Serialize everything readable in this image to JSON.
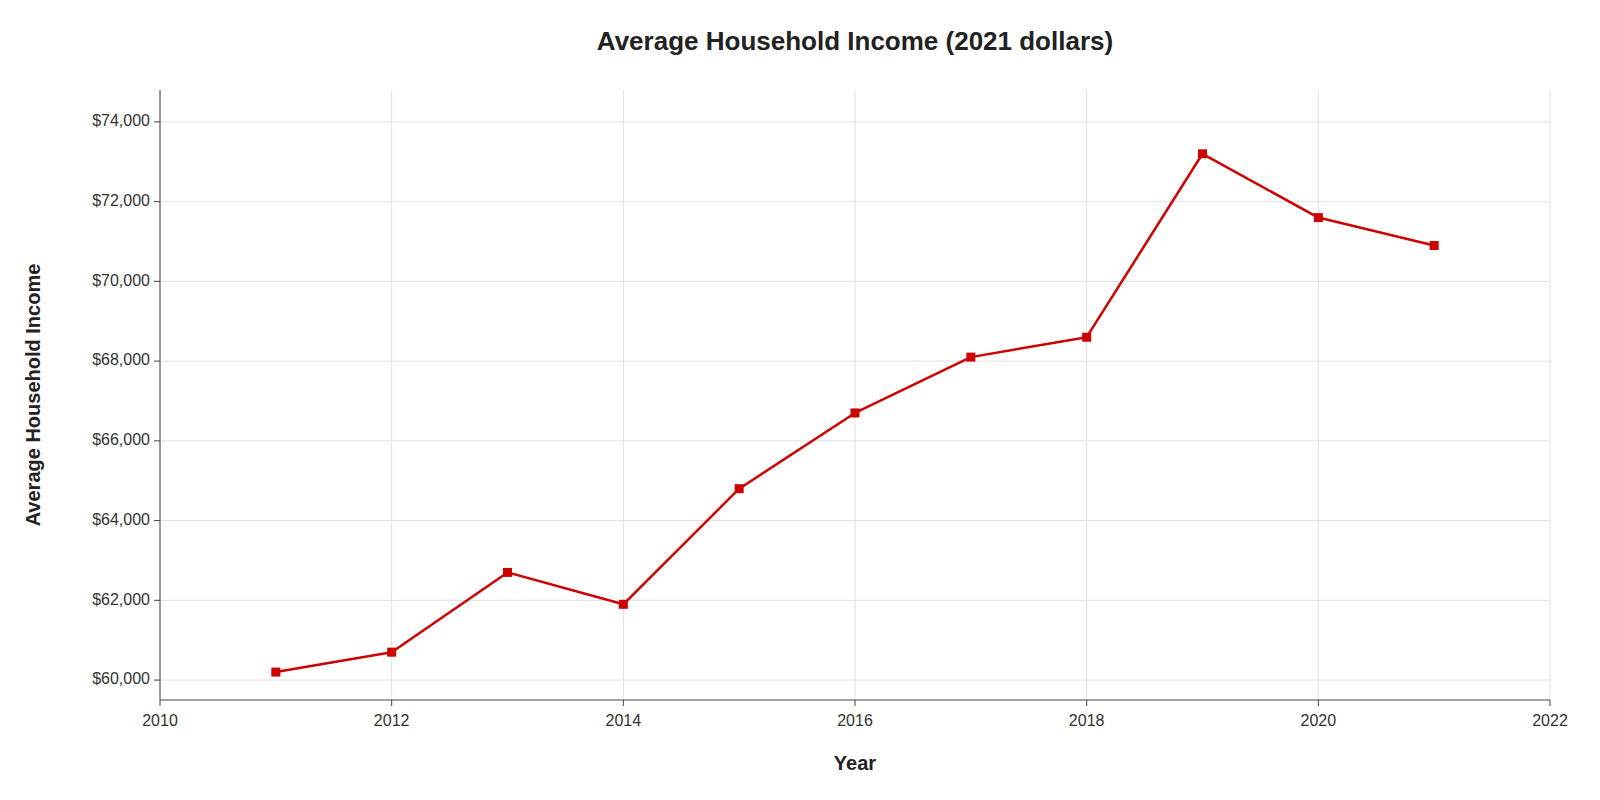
{
  "chart_data": {
    "type": "line",
    "title": "Average Household Income (2021 dollars)",
    "xlabel": "Year",
    "ylabel": "Average Household Income",
    "x": [
      2011,
      2012,
      2013,
      2014,
      2015,
      2016,
      2017,
      2018,
      2019,
      2020,
      2021
    ],
    "values": [
      60200,
      60700,
      62700,
      61900,
      64800,
      66700,
      68100,
      68600,
      73200,
      71600,
      70900
    ],
    "color": "#CC0000",
    "marker": "square",
    "xlim": [
      2010,
      2022
    ],
    "ylim": [
      59500,
      74800
    ],
    "xticks": [
      2010,
      2012,
      2014,
      2016,
      2018,
      2020,
      2022
    ],
    "yticks": [
      {
        "value": 60000,
        "label": "$60,000"
      },
      {
        "value": 62000,
        "label": "$62,000"
      },
      {
        "value": 64000,
        "label": "$64,000"
      },
      {
        "value": 66000,
        "label": "$66,000"
      },
      {
        "value": 68000,
        "label": "$68,000"
      },
      {
        "value": 70000,
        "label": "$70,000"
      },
      {
        "value": 72000,
        "label": "$72,000"
      },
      {
        "value": 74000,
        "label": "$74,000"
      }
    ],
    "grid": true
  }
}
